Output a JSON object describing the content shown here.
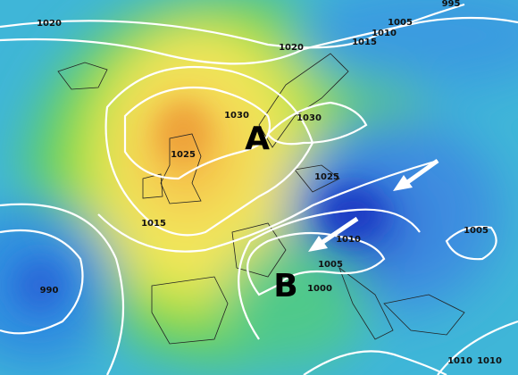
{
  "systems": {
    "high": "A",
    "low": "B"
  },
  "pressure_labels": [
    "1020",
    "995",
    "1005",
    "1010",
    "1015",
    "1020",
    "1030",
    "1030",
    "1025",
    "1025",
    "1015",
    "1010",
    "1005",
    "1005",
    "1000",
    "990",
    "1010",
    "1010"
  ]
}
